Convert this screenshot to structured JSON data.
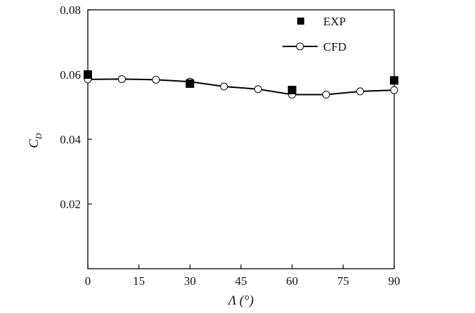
{
  "chart_data": {
    "type": "line",
    "xlabel": "Λ (°)",
    "ylabel_main": "C",
    "ylabel_sub": "D",
    "xlim": [
      0,
      90
    ],
    "ylim": [
      0,
      0.08
    ],
    "x_ticks": [
      "0",
      "15",
      "30",
      "45",
      "60",
      "75",
      "90"
    ],
    "y_ticks": [
      "0.02",
      "0.04",
      "0.06",
      "0.08"
    ],
    "grid": false,
    "legend_placement": "top-right",
    "series": [
      {
        "name": "EXP",
        "style": "marker-square",
        "x": [
          0,
          30,
          60,
          90
        ],
        "y": [
          0.06,
          0.0572,
          0.0552,
          0.0582
        ]
      },
      {
        "name": "CFD",
        "style": "line-circle",
        "x": [
          0,
          10,
          20,
          30,
          40,
          50,
          60,
          70,
          80,
          90
        ],
        "y": [
          0.0585,
          0.0586,
          0.0584,
          0.0578,
          0.0563,
          0.0555,
          0.0538,
          0.0538,
          0.0548,
          0.0552
        ]
      }
    ],
    "colors": {
      "axis": "#000000",
      "line": "#000000",
      "marker_fill": "#000000",
      "open_marker_fill": "#ffffff"
    }
  }
}
